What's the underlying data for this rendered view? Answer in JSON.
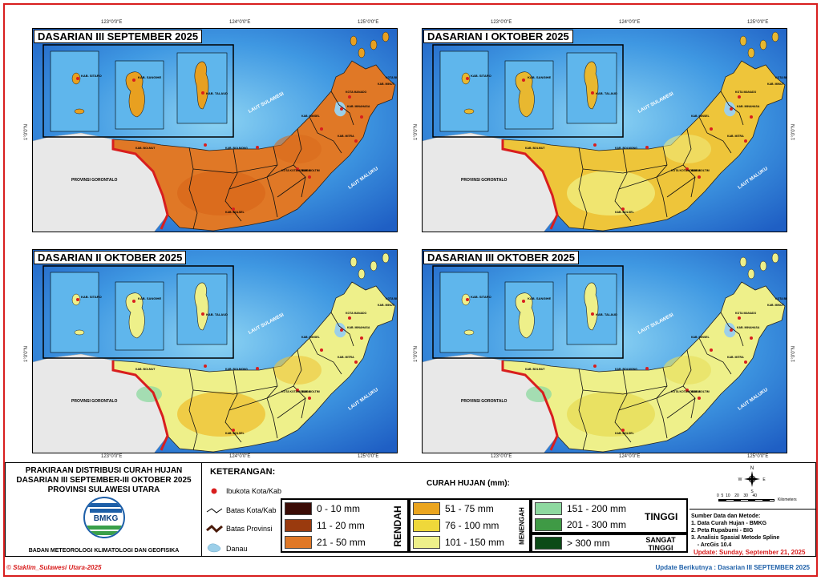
{
  "colors": {
    "sea": "#3a8fe0",
    "land_gorontalo": "#e8e8e8",
    "province_border": "#d81e1e",
    "frame": "#d81e1e",
    "lake": "#9ccfe9"
  },
  "grid_labels": {
    "lon": [
      "123°0'0\"E",
      "124°0'0\"E",
      "125°0'0\"E"
    ],
    "lat": "1°0'0\"N"
  },
  "map_labels": {
    "laut_sulawesi": "LAUT SULAWESI",
    "laut_maluku": "LAUT MALUKU",
    "prov_gorontalo": "PROVINSI GORONTALO",
    "kab_sitaro": "KAB. SITARO",
    "kab_sangihe": "KAB. SANGIHE",
    "kab_talaud": "KAB. TALAUD",
    "kab_bolmut": "KAB. BOLMUT",
    "kab_bolmong": "KAB. BOLMONG",
    "kab_boltim": "KAB. BOLTIM",
    "kab_bolsel": "KAB. BOLSEL",
    "kab_minsel": "KAB. MINSEL",
    "kota_manado": "KOTA MANADO",
    "kab_minahasa": "KAB. MINAHASA",
    "kab_minut": "KAB. MINUT",
    "kab_mitra": "KAB. MITRA",
    "kota_kotamobagu": "KOTA KOTAMOBAGU",
    "kota_bitung": "KOTA BITUNG"
  },
  "panels": [
    {
      "title": "DASARIAN III SEPTEMBER 2025",
      "land": "#e07826",
      "land2": "#d96a1c",
      "island": "#e8a020",
      "patch": "#e8a020"
    },
    {
      "title": "DASARIAN I OKTOBER 2025",
      "land": "#eec53a",
      "land2": "#f0ea7a",
      "island": "#e8b830",
      "patch": "#e8a020"
    },
    {
      "title": "DASARIAN II OKTOBER 2025",
      "land": "#eef08a",
      "land2": "#eec53a",
      "island": "#eef08a",
      "patch": "#8ed9a0"
    },
    {
      "title": "DASARIAN III OKTOBER 2025",
      "land": "#eef08a",
      "land2": "#e8de5a",
      "island": "#eef08a",
      "patch": "#8ed9a0"
    }
  ],
  "legend": {
    "title_lines": [
      "PRAKIRAAN DISTRIBUSI CURAH HUJAN",
      "DASARIAN III SEPTEMBER-III OKTOBER 2025",
      "PROVINSI SULAWESI UTARA"
    ],
    "org_logo_text": "BMKG",
    "org_name": "BADAN METEOROLOGI KLIMATOLOGI DAN GEOFISIKA",
    "keterangan_title": "KETERANGAN:",
    "keterangan_items": [
      "Ibukota Kota/Kab",
      "Batas Kota/Kab",
      "Batas Provinsi",
      "Danau"
    ],
    "curah_title": "CURAH HUJAN (mm):",
    "groups": [
      {
        "label": "RENDAH",
        "classes": [
          {
            "label": "0 - 10 mm",
            "color": "#3b0c06"
          },
          {
            "label": "11 - 20 mm",
            "color": "#9a3a0e"
          },
          {
            "label": "21 - 50 mm",
            "color": "#e07826"
          }
        ]
      },
      {
        "label": "MENENGAH",
        "classes": [
          {
            "label": "51 - 75 mm",
            "color": "#eba51f"
          },
          {
            "label": "76 - 100 mm",
            "color": "#efd83a"
          },
          {
            "label": "101 - 150 mm",
            "color": "#eef08a"
          }
        ]
      },
      {
        "label": "TINGGI",
        "classes": [
          {
            "label": "151 - 200 mm",
            "color": "#8ed9a0"
          },
          {
            "label": "201 - 300 mm",
            "color": "#3f9a45"
          }
        ]
      },
      {
        "label": "SANGAT TINGGI",
        "classes": [
          {
            "label": "> 300 mm",
            "color": "#0b4a16"
          }
        ]
      }
    ],
    "scale_label": "0  5  10    20    30    40",
    "scale_unit": "Kilometers",
    "north": "N",
    "compass_w": "W",
    "compass_e": "E",
    "compass_s": "S",
    "sumber_title": "Sumber Data dan Metode:",
    "sumber_items": [
      "1. Data Curah Hujan - BMKG",
      "2. Peta Rupabumi - BIG",
      "3. Analisis Spasial Metode Spline",
      "    - ArcGis 10.4"
    ],
    "update_date": "Update: Sunday, September 21, 2025"
  },
  "footer": {
    "credit": "© Staklim_Sulawesi Utara-2025",
    "next_update": "Update Berikutnya : Dasarian III SEPTEMBER 2025"
  }
}
